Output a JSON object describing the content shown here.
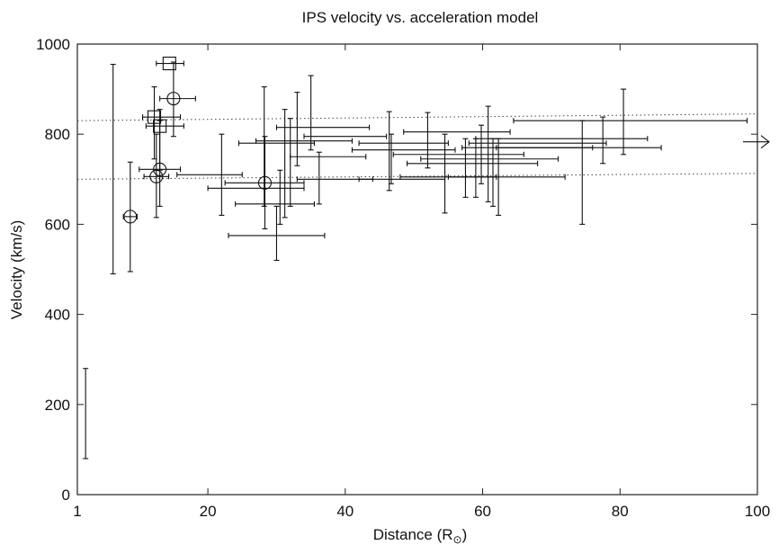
{
  "chart_data": {
    "type": "scatter",
    "title": "IPS velocity vs. acceleration model",
    "xlabel": "Distance (R",
    "xlabel_subscript": "⊙",
    "xlabel_close": ")",
    "ylabel": "Velocity (km/s)",
    "xlim": [
      1,
      100
    ],
    "ylim": [
      0,
      1000
    ],
    "xticks": [
      {
        "value": 1,
        "label": "1"
      },
      {
        "value": 20,
        "label": "20"
      },
      {
        "value": 40,
        "label": "40"
      },
      {
        "value": 60,
        "label": "60"
      },
      {
        "value": 80,
        "label": "80"
      },
      {
        "value": 100,
        "label": "100"
      }
    ],
    "yticks": [
      {
        "value": 0,
        "label": "0"
      },
      {
        "value": 200,
        "label": "200"
      },
      {
        "value": 400,
        "label": "400"
      },
      {
        "value": 600,
        "label": "600"
      },
      {
        "value": 800,
        "label": "800"
      },
      {
        "value": 1000,
        "label": "1000"
      }
    ],
    "grid": false,
    "reference_lines": [
      {
        "style": "dotted",
        "x": [
          1,
          100
        ],
        "y": [
          830,
          845
        ]
      },
      {
        "style": "dotted",
        "x": [
          1,
          100
        ],
        "y": [
          700,
          713
        ]
      }
    ],
    "arrow": {
      "direction": "right",
      "y": 783
    },
    "circles": [
      {
        "x": 8.7,
        "y": 617
      },
      {
        "x": 12.5,
        "y": 706
      },
      {
        "x": 13.0,
        "y": 722
      },
      {
        "x": 15.0,
        "y": 879
      },
      {
        "x": 28.3,
        "y": 692
      }
    ],
    "squares": [
      {
        "x": 14.4,
        "y": 957
      },
      {
        "x": 12.2,
        "y": 838
      },
      {
        "x": 13.0,
        "y": 818
      }
    ],
    "measurements": [
      {
        "x": 2.2,
        "y": 180,
        "ylo": 80,
        "yhi": 280
      },
      {
        "x": 6.2,
        "y": 720,
        "ylo": 490,
        "yhi": 955
      },
      {
        "x": 8.7,
        "y": 617,
        "xlo": 7.7,
        "xhi": 9.7,
        "ylo": 495,
        "yhi": 738
      },
      {
        "x": 12.5,
        "y": 706,
        "xlo": 10.7,
        "xhi": 14.3,
        "ylo": 615,
        "yhi": 800
      },
      {
        "x": 13.0,
        "y": 722,
        "xlo": 10.0,
        "xhi": 16.0,
        "ylo": 640,
        "yhi": 830
      },
      {
        "x": 15.0,
        "y": 879,
        "xlo": 13.0,
        "xhi": 18.2,
        "ylo": 795,
        "yhi": 960
      },
      {
        "x": 14.4,
        "y": 957,
        "xlo": 12.5,
        "xhi": 16.5
      },
      {
        "x": 12.2,
        "y": 838,
        "xlo": 10.5,
        "xhi": 16.0,
        "ylo": 745,
        "yhi": 905
      },
      {
        "x": 13.0,
        "y": 818,
        "xlo": 11.0,
        "xhi": 16.5,
        "ylo": 720,
        "yhi": 855
      },
      {
        "x": 20.0,
        "y": 710,
        "xlo": 15.5,
        "xhi": 25.0
      },
      {
        "x": 22.0,
        "y": 710,
        "ylo": 620,
        "yhi": 800
      },
      {
        "x": 28.3,
        "y": 692,
        "xlo": 22.5,
        "xhi": 34.0,
        "ylo": 590,
        "yhi": 795
      },
      {
        "x": 28.2,
        "y": 760,
        "ylo": 640,
        "yhi": 905
      },
      {
        "x": 27.0,
        "y": 680,
        "xlo": 20.0,
        "xhi": 34.0
      },
      {
        "x": 30.0,
        "y": 575,
        "xlo": 23.0,
        "xhi": 37.0,
        "ylo": 520,
        "yhi": 640
      },
      {
        "x": 29.5,
        "y": 645,
        "xlo": 24.0,
        "xhi": 35.5
      },
      {
        "x": 30.5,
        "y": 690,
        "ylo": 600,
        "yhi": 720
      },
      {
        "x": 31.2,
        "y": 720,
        "ylo": 615,
        "yhi": 855
      },
      {
        "x": 32.0,
        "y": 725,
        "ylo": 640,
        "yhi": 835
      },
      {
        "x": 33.0,
        "y": 810,
        "ylo": 730,
        "yhi": 893
      },
      {
        "x": 34.0,
        "y": 785,
        "xlo": 27.0,
        "xhi": 41.0
      },
      {
        "x": 35.0,
        "y": 840,
        "ylo": 765,
        "yhi": 930
      },
      {
        "x": 36.5,
        "y": 815,
        "xlo": 30.0,
        "xhi": 43.5
      },
      {
        "x": 36.2,
        "y": 700,
        "ylo": 645,
        "yhi": 760
      },
      {
        "x": 30.0,
        "y": 780,
        "xlo": 24.5,
        "xhi": 35.5
      },
      {
        "x": 37.0,
        "y": 750,
        "xlo": 32.0,
        "xhi": 43.0
      },
      {
        "x": 40.0,
        "y": 795,
        "xlo": 34.0,
        "xhi": 46.0
      },
      {
        "x": 38.0,
        "y": 700,
        "xlo": 33.0,
        "xhi": 44.0
      },
      {
        "x": 46.4,
        "y": 760,
        "ylo": 675,
        "yhi": 850
      },
      {
        "x": 46.7,
        "y": 745,
        "ylo": 690,
        "yhi": 800
      },
      {
        "x": 47.0,
        "y": 780,
        "xlo": 42.0,
        "xhi": 55.0
      },
      {
        "x": 47.5,
        "y": 765,
        "xlo": 41.0,
        "xhi": 56.0
      },
      {
        "x": 48.0,
        "y": 700,
        "xlo": 42.0,
        "xhi": 54.5
      },
      {
        "x": 52.0,
        "y": 760,
        "ylo": 725,
        "yhi": 848
      },
      {
        "x": 55.5,
        "y": 805,
        "xlo": 48.5,
        "xhi": 64.0
      },
      {
        "x": 56.0,
        "y": 755,
        "xlo": 47.0,
        "xhi": 66.0
      },
      {
        "x": 58.0,
        "y": 735,
        "xlo": 49.0,
        "xhi": 68.0
      },
      {
        "x": 60.0,
        "y": 745,
        "xlo": 51.0,
        "xhi": 71.0
      },
      {
        "x": 55.0,
        "y": 705,
        "xlo": 48.0,
        "xhi": 62.0
      },
      {
        "x": 54.5,
        "y": 720,
        "ylo": 625,
        "yhi": 800
      },
      {
        "x": 57.5,
        "y": 740,
        "ylo": 660,
        "yhi": 790
      },
      {
        "x": 59.0,
        "y": 745,
        "ylo": 660,
        "yhi": 790
      },
      {
        "x": 59.8,
        "y": 760,
        "ylo": 690,
        "yhi": 820
      },
      {
        "x": 60.8,
        "y": 760,
        "ylo": 650,
        "yhi": 862
      },
      {
        "x": 61.5,
        "y": 720,
        "ylo": 640,
        "yhi": 790
      },
      {
        "x": 62.3,
        "y": 720,
        "ylo": 620,
        "yhi": 790
      },
      {
        "x": 63.0,
        "y": 705,
        "xlo": 55.0,
        "xhi": 72.0
      },
      {
        "x": 66.0,
        "y": 770,
        "xlo": 57.0,
        "xhi": 76.0
      },
      {
        "x": 68.0,
        "y": 780,
        "xlo": 58.0,
        "xhi": 78.0
      },
      {
        "x": 70.0,
        "y": 790,
        "xlo": 59.0,
        "xhi": 84.0
      },
      {
        "x": 74.5,
        "y": 715,
        "ylo": 600,
        "yhi": 830
      },
      {
        "x": 75.0,
        "y": 770,
        "xlo": 62.0,
        "xhi": 86.0
      },
      {
        "x": 77.5,
        "y": 785,
        "ylo": 735,
        "yhi": 838
      },
      {
        "x": 80.5,
        "y": 815,
        "ylo": 755,
        "yhi": 900
      },
      {
        "x": 82.0,
        "y": 830,
        "xlo": 64.5,
        "xhi": 98.5
      }
    ]
  }
}
